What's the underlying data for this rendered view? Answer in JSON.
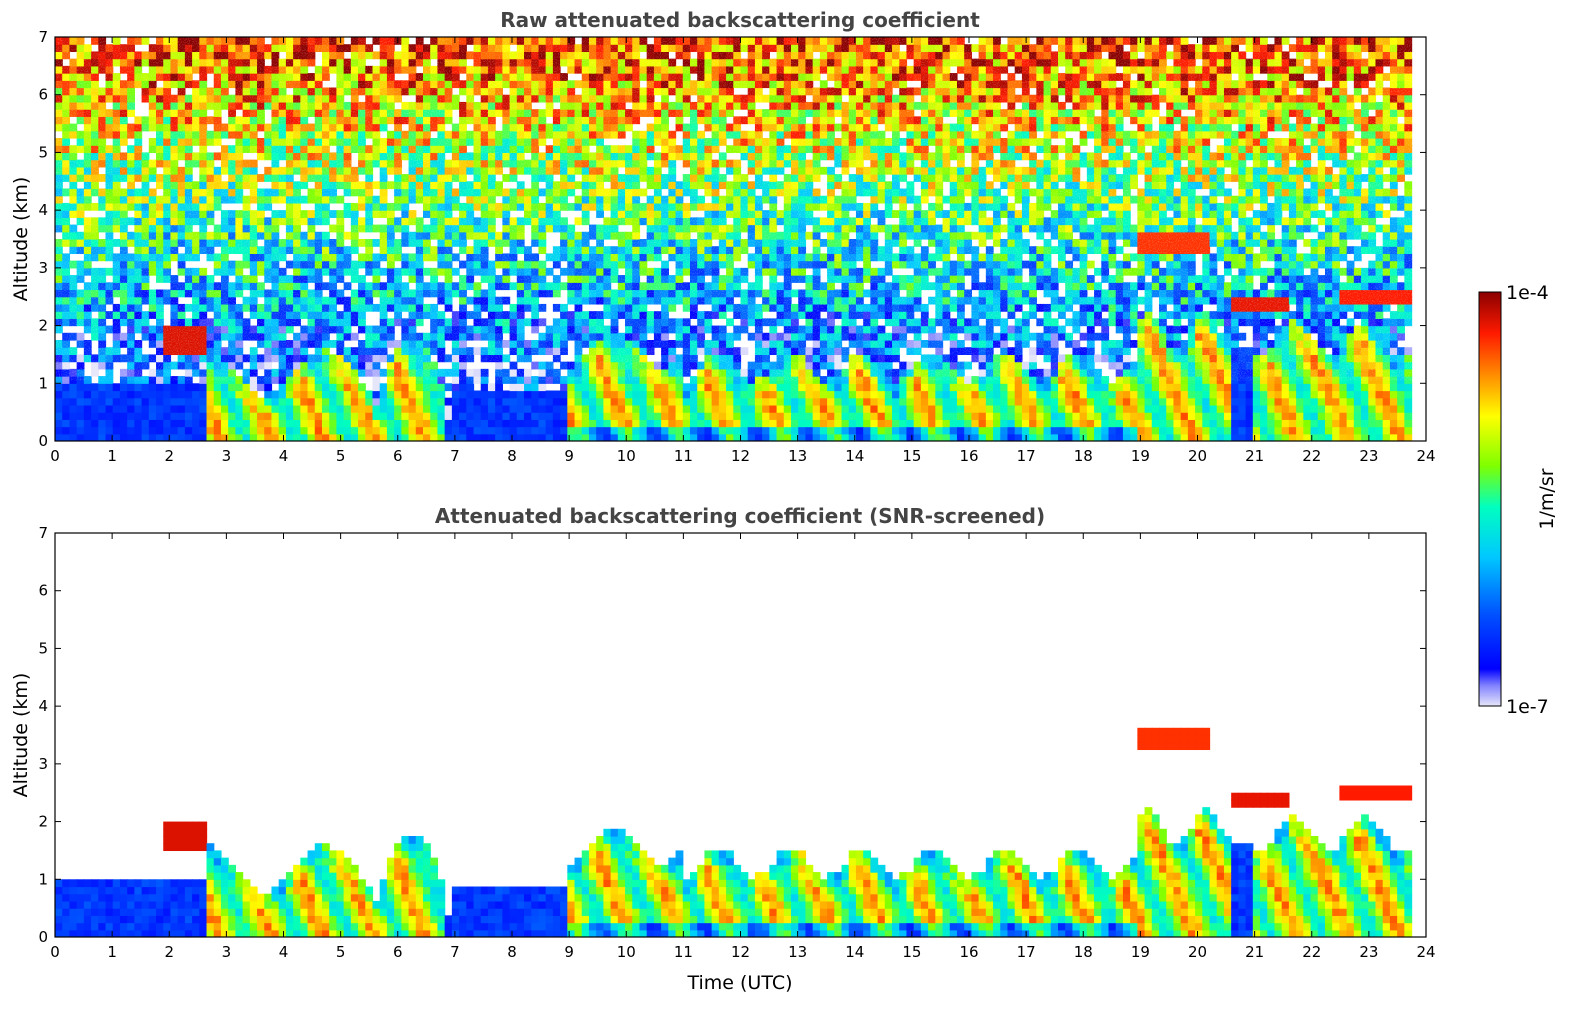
{
  "chart_data": [
    {
      "type": "heatmap",
      "title": "Raw attenuated backscattering coefficient",
      "ylabel": "Altitude (km)",
      "xlabel": "",
      "x_ticks": [
        "0",
        "1",
        "2",
        "3",
        "4",
        "5",
        "6",
        "7",
        "8",
        "9",
        "10",
        "11",
        "12",
        "13",
        "14",
        "15",
        "16",
        "17",
        "18",
        "19",
        "20",
        "21",
        "22",
        "23",
        "24"
      ],
      "y_ticks": [
        "0",
        "1",
        "2",
        "3",
        "4",
        "5",
        "6",
        "7"
      ],
      "xlim": [
        0,
        24
      ],
      "ylim": [
        0,
        7
      ],
      "screened": false
    },
    {
      "type": "heatmap",
      "title": "Attenuated backscattering coefficient (SNR-screened)",
      "ylabel": "Altitude (km)",
      "xlabel": "Time (UTC)",
      "x_ticks": [
        "0",
        "1",
        "2",
        "3",
        "4",
        "5",
        "6",
        "7",
        "8",
        "9",
        "10",
        "11",
        "12",
        "13",
        "14",
        "15",
        "16",
        "17",
        "18",
        "19",
        "20",
        "21",
        "22",
        "23",
        "24"
      ],
      "y_ticks": [
        "0",
        "1",
        "2",
        "3",
        "4",
        "5",
        "6",
        "7"
      ],
      "xlim": [
        0,
        24
      ],
      "ylim": [
        0,
        7
      ],
      "screened": true
    }
  ],
  "colorbar": {
    "label": "1/m/sr",
    "min_label": "1e-7",
    "max_label": "1e-4",
    "scale": "log",
    "colormap": "jet",
    "colors": [
      "#e6e6fa",
      "#00008b",
      "#0000ff",
      "#00bfff",
      "#00ffcc",
      "#7fff00",
      "#ffff00",
      "#ff8c00",
      "#ff0000",
      "#8b0000"
    ]
  }
}
